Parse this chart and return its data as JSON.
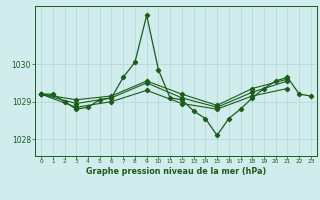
{
  "bg_color": "#d0ecec",
  "grid_color": "#b8dada",
  "line_color": "#1a5c1a",
  "marker_color": "#1a5c1a",
  "title": "Graphe pression niveau de la mer (hPa)",
  "title_color": "#1a5c1a",
  "xlim": [
    -0.5,
    23.5
  ],
  "ylim": [
    1027.55,
    1031.55
  ],
  "yticks": [
    1028,
    1029,
    1030
  ],
  "xticks": [
    0,
    1,
    2,
    3,
    4,
    5,
    6,
    7,
    8,
    9,
    10,
    11,
    12,
    13,
    14,
    15,
    16,
    17,
    18,
    19,
    20,
    21,
    22,
    23
  ],
  "series": [
    {
      "x": [
        0,
        1,
        2,
        3,
        4,
        5,
        6,
        7,
        8,
        9,
        10,
        11,
        12,
        13,
        14,
        15,
        16,
        17,
        18,
        19,
        20,
        21,
        22,
        23
      ],
      "y": [
        1029.2,
        1029.2,
        1029.0,
        1028.8,
        1028.85,
        1029.05,
        1029.1,
        1029.65,
        1030.05,
        1031.3,
        1029.85,
        1029.1,
        1029.05,
        1028.75,
        1028.55,
        1028.1,
        1028.55,
        1028.8,
        1029.1,
        1029.35,
        1029.55,
        1029.65,
        1029.2,
        1029.15
      ],
      "style": "main"
    },
    {
      "x": [
        0,
        3,
        6,
        9,
        12,
        15,
        18,
        21
      ],
      "y": [
        1029.2,
        1028.95,
        1029.1,
        1029.5,
        1029.1,
        1028.85,
        1029.25,
        1029.55
      ],
      "style": "aux1"
    },
    {
      "x": [
        0,
        3,
        6,
        9,
        12,
        15,
        18,
        21
      ],
      "y": [
        1029.2,
        1028.85,
        1029.0,
        1029.3,
        1028.95,
        1028.8,
        1029.15,
        1029.35
      ],
      "style": "aux2"
    },
    {
      "x": [
        0,
        3,
        6,
        9,
        12,
        15,
        18,
        21
      ],
      "y": [
        1029.2,
        1029.05,
        1029.15,
        1029.55,
        1029.2,
        1028.9,
        1029.35,
        1029.6
      ],
      "style": "aux3"
    }
  ]
}
